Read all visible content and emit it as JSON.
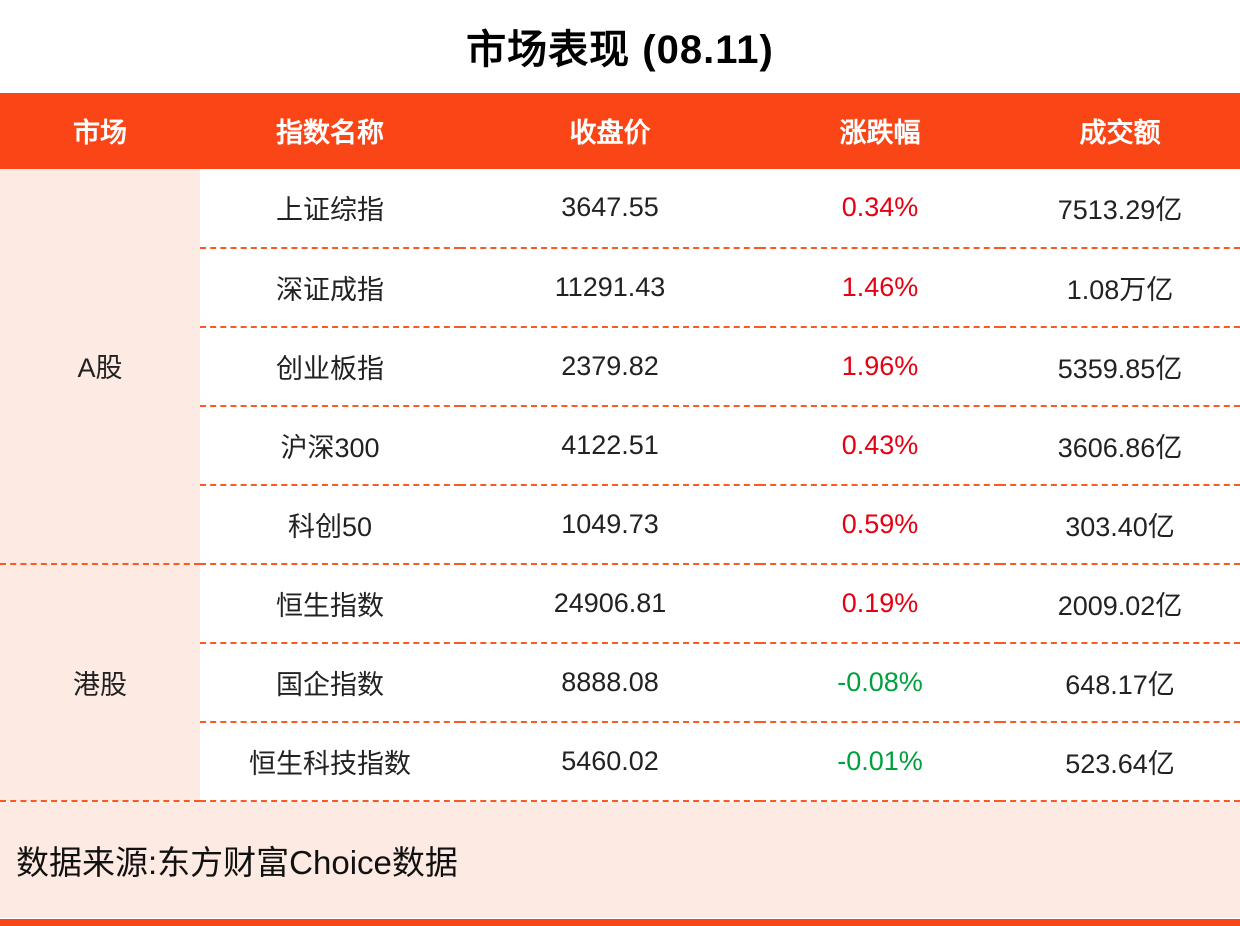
{
  "title": "市场表现 (08.11)",
  "table": {
    "headers": [
      "市场",
      "指数名称",
      "收盘价",
      "涨跌幅",
      "成交额"
    ],
    "groups": [
      {
        "market": "A股",
        "rowspan": 5
      },
      {
        "market": "港股",
        "rowspan": 3
      }
    ],
    "rows": [
      {
        "group": "A股",
        "name": "上证综指",
        "close": "3647.55",
        "change": "0.34%",
        "change_direction": "up",
        "turnover": "7513.29亿"
      },
      {
        "group": "A股",
        "name": "深证成指",
        "close": "11291.43",
        "change": "1.46%",
        "change_direction": "up",
        "turnover": "1.08万亿"
      },
      {
        "group": "A股",
        "name": "创业板指",
        "close": "2379.82",
        "change": "1.96%",
        "change_direction": "up",
        "turnover": "5359.85亿"
      },
      {
        "group": "A股",
        "name": "沪深300",
        "close": "4122.51",
        "change": "0.43%",
        "change_direction": "up",
        "turnover": "3606.86亿"
      },
      {
        "group": "A股",
        "name": "科创50",
        "close": "1049.73",
        "change": "0.59%",
        "change_direction": "up",
        "turnover": "303.40亿"
      },
      {
        "group": "港股",
        "name": "恒生指数",
        "close": "24906.81",
        "change": "0.19%",
        "change_direction": "up",
        "turnover": "2009.02亿"
      },
      {
        "group": "港股",
        "name": "国企指数",
        "close": "8888.08",
        "change": "-0.08%",
        "change_direction": "down",
        "turnover": "648.17亿"
      },
      {
        "group": "港股",
        "name": "恒生科技指数",
        "close": "5460.02",
        "change": "-0.01%",
        "change_direction": "down",
        "turnover": "523.64亿"
      }
    ]
  },
  "footer": {
    "source": "数据来源:东方财富Choice数据"
  },
  "colors": {
    "header_bg": "#fa4616",
    "group_bg": "#fdeae3",
    "up_color": "#e60012",
    "down_color": "#00a03e",
    "dashed_line": "#fa5a22"
  },
  "chart_data": {
    "type": "table",
    "title": "市场表现 (08.11)",
    "columns": [
      "市场",
      "指数名称",
      "收盘价",
      "涨跌幅",
      "成交额"
    ],
    "rows": [
      [
        "A股",
        "上证综指",
        3647.55,
        "0.34%",
        "7513.29亿"
      ],
      [
        "A股",
        "深证成指",
        11291.43,
        "1.46%",
        "1.08万亿"
      ],
      [
        "A股",
        "创业板指",
        2379.82,
        "1.96%",
        "5359.85亿"
      ],
      [
        "A股",
        "沪深300",
        4122.51,
        "0.43%",
        "3606.86亿"
      ],
      [
        "A股",
        "科创50",
        1049.73,
        "0.59%",
        "303.40亿"
      ],
      [
        "港股",
        "恒生指数",
        24906.81,
        "0.19%",
        "2009.02亿"
      ],
      [
        "港股",
        "国企指数",
        8888.08,
        "-0.08%",
        "648.17亿"
      ],
      [
        "港股",
        "恒生科技指数",
        5460.02,
        "-0.01%",
        "523.64亿"
      ]
    ],
    "notes": "涨跌幅正值为红色，负值为绿色（中国市场配色惯例）"
  }
}
